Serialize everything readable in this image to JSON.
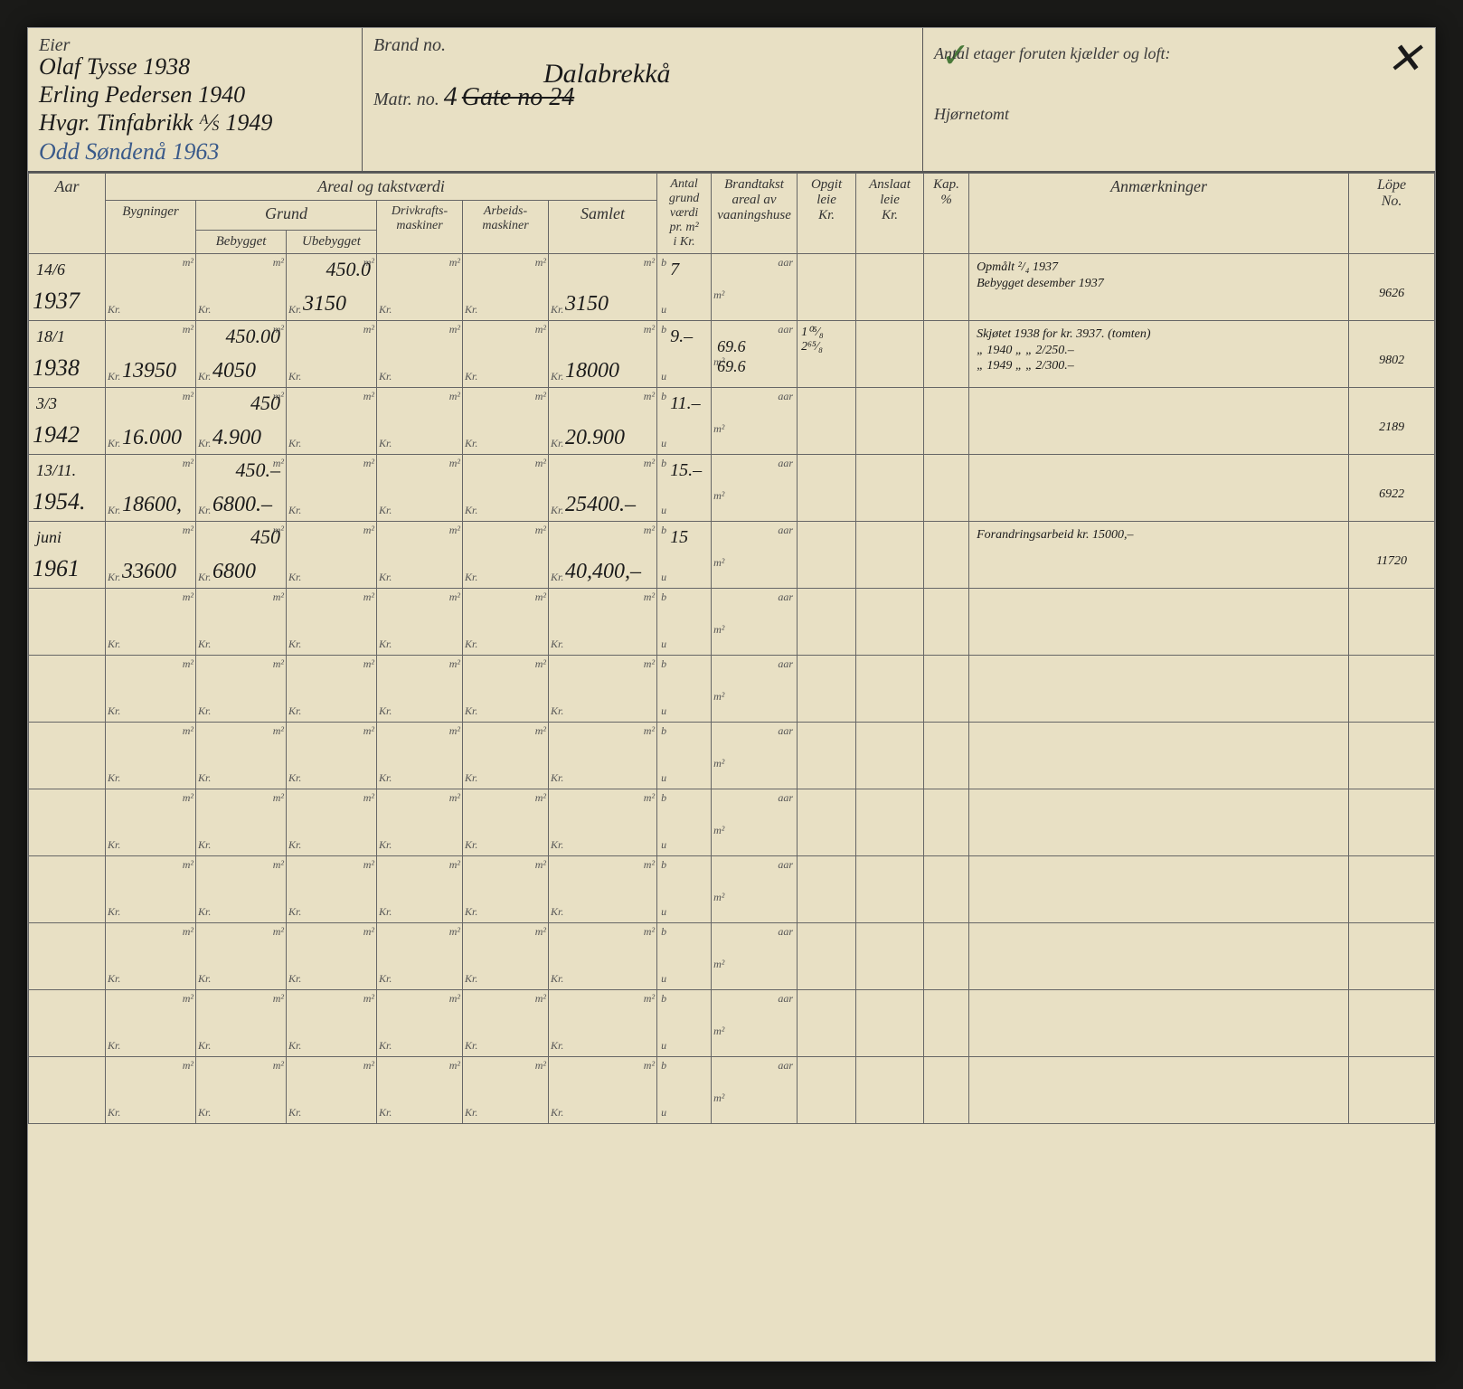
{
  "background_color": "#e8e0c4",
  "ink_color": "#1a1a1a",
  "rule_color": "#666666",
  "header": {
    "eier_label": "Eier",
    "eier_lines": [
      "Olaf Tysse 1938",
      "Erling Pedersen 1940",
      "Hvgr. Tinfabrikk ⅍ 1949",
      "Odd Søndenå 1963"
    ],
    "brand_label": "Brand no.",
    "matr_label": "Matr. no.",
    "brand_hand_top": "Dalabrekkå",
    "matr_hand": "4",
    "gate_hand": "Gate no 24",
    "etager_label": "Antal etager foruten kjælder og loft:",
    "hjorne_label": "Hjørnetomt",
    "corner_mark": "✕",
    "checkmark": "✓"
  },
  "columns": {
    "areal_title": "Areal og takstværdi",
    "grund_title": "Grund",
    "aar": "Aar",
    "bygninger": "Bygninger",
    "bebygget": "Bebygget",
    "ubebygget": "Ubebygget",
    "drivkraft": "Drivkrafts-\nmaskiner",
    "arbeids": "Arbeids-\nmaskiner",
    "samlet": "Samlet",
    "antal": "Antal\ngrund\nværdi\npr. m²\ni Kr.",
    "brandtakst": "Brandtakst\nareal av\nvaaningshuse",
    "opgit": "Opgit\nleie\nKr.",
    "anslaat": "Anslaat\nleie\nKr.",
    "kap": "Kap.\n%",
    "anm": "Anmærkninger",
    "lope": "Löpe\nNo."
  },
  "sublabels": {
    "m2": "m²",
    "kr": "Kr.",
    "b": "b",
    "u": "u",
    "aar": "aar"
  },
  "rows": [
    {
      "aar_pre": "14/6",
      "aar": "1937",
      "ubebygget_m2": "450.0",
      "ubebygget_kr": "3150",
      "samlet_kr": "3150",
      "antal_b": "7",
      "anm": "Opmålt ²/₄ 1937\nBebygget desember 1937",
      "lope": "9626"
    },
    {
      "aar_pre": "18/1",
      "aar": "1938",
      "bygninger_kr": "13950",
      "bebygget_m2": "450.00",
      "bebygget_kr": "4050",
      "samlet_kr": "18000",
      "antal_b": "9.–",
      "brand_top": "69.6",
      "brand_bot": "69.6",
      "opgit": "1⁰⁵⁄₈\n2⁶⁵⁄₈",
      "anm": "Skjøtet 1938 for kr. 3937. (tomten)\n  „   1940  „  „  2/250.–\n  „   1949  „  „  2/300.–",
      "lope": "9802"
    },
    {
      "aar_pre": "3/3",
      "aar": "1942",
      "bygninger_kr": "16.000",
      "bebygget_m2": "450",
      "bebygget_kr": "4.900",
      "samlet_kr": "20.900",
      "antal_b": "11.–",
      "lope": "2189"
    },
    {
      "aar_pre": "13/11.",
      "aar": "1954.",
      "bygninger_kr": "18600,",
      "bebygget_m2": "450.–",
      "bebygget_kr": "6800.–",
      "samlet_kr": "25400.–",
      "antal_b": "15.–",
      "lope": "6922"
    },
    {
      "aar_pre": "juni",
      "aar": "1961",
      "bygninger_kr": "33600",
      "bebygget_m2": "450",
      "bebygget_kr": "6800",
      "samlet_kr": "40,400,–",
      "antal_b": "15",
      "anm": "Forandringsarbeid  kr. 15000,–",
      "lope": "11720"
    },
    {},
    {},
    {},
    {},
    {},
    {},
    {},
    {}
  ]
}
